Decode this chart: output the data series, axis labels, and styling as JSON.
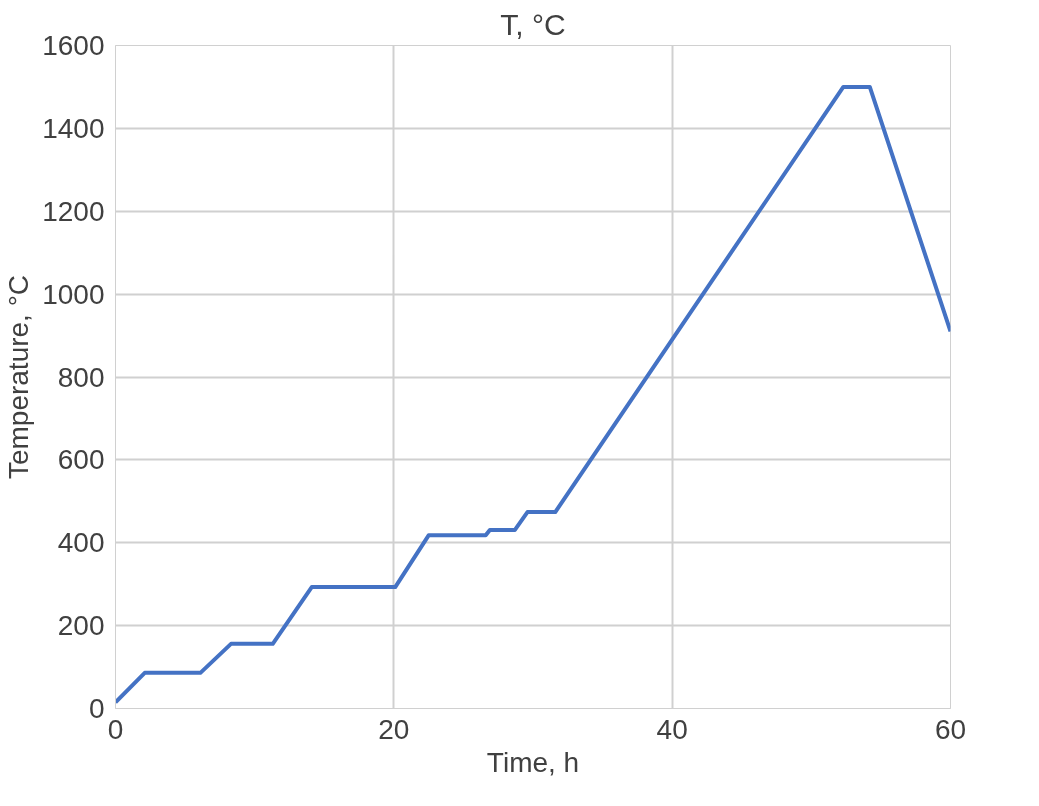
{
  "chart_data": {
    "type": "line",
    "title": "T, °C",
    "xlabel": "Time, h",
    "ylabel": "Temperature, °C",
    "xlim": [
      0,
      60
    ],
    "xticks": [
      0,
      20,
      40,
      60
    ],
    "ylim": [
      0,
      1600
    ],
    "yticks": [
      0,
      200,
      400,
      600,
      800,
      1000,
      1200,
      1400,
      1600
    ],
    "grid": true,
    "series": [
      {
        "color": "#4472c4",
        "x": [
          0,
          2.1,
          6.1,
          8.3,
          11.3,
          14.1,
          20.1,
          22.5,
          26.6,
          26.9,
          28.7,
          29.6,
          31.6,
          52.3,
          54.2,
          60
        ],
        "values": [
          15,
          86,
          86,
          156,
          156,
          293,
          293,
          418,
          418,
          431,
          431,
          474,
          474,
          1500,
          1500,
          910
        ]
      }
    ]
  }
}
